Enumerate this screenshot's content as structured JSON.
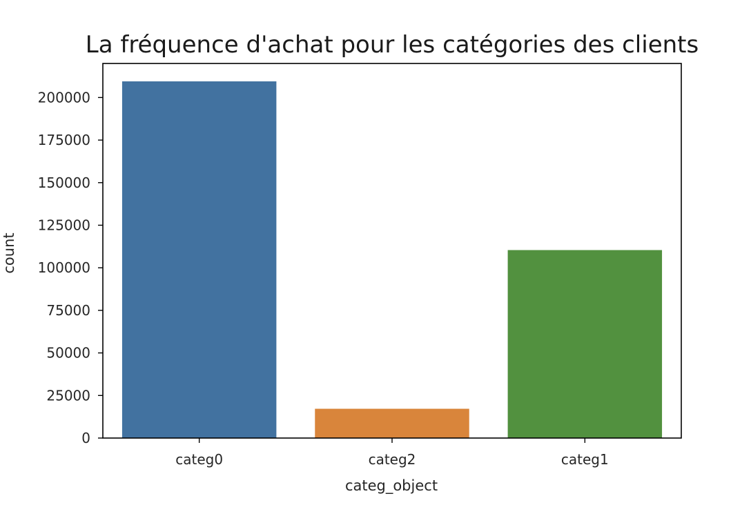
{
  "chart_data": {
    "type": "bar",
    "title": "La fréquence d'achat pour les catégories des clients",
    "xlabel": "categ_object",
    "ylabel": "count",
    "categories": [
      "categ0",
      "categ2",
      "categ1"
    ],
    "values": [
      209500,
      17200,
      110400
    ],
    "colors": [
      "#4272a0",
      "#d9853b",
      "#52913f"
    ],
    "ylim": [
      0,
      220000
    ],
    "yticks": [
      0,
      25000,
      50000,
      75000,
      100000,
      125000,
      150000,
      175000,
      200000
    ],
    "grid": false,
    "legend": "none"
  }
}
